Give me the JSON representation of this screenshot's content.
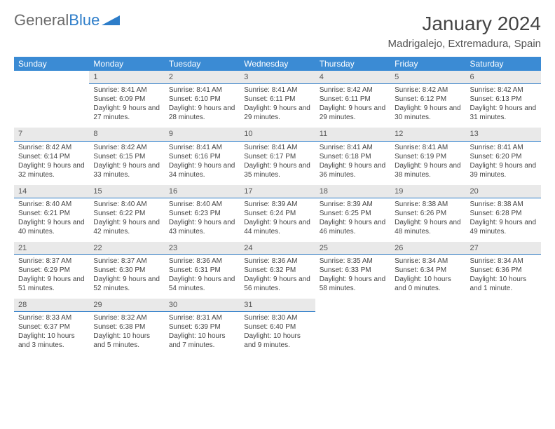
{
  "logo": {
    "text1": "General",
    "text2": "Blue"
  },
  "title": "January 2024",
  "location": "Madrigalejo, Extremadura, Spain",
  "colors": {
    "header_bg": "#3b8bd4",
    "header_text": "#ffffff",
    "daynum_bg": "#e9e9e9",
    "daynum_border": "#2d7dc9",
    "body_text": "#444444",
    "logo_gray": "#6b6b6b",
    "logo_blue": "#2d7dc9"
  },
  "weekdays": [
    "Sunday",
    "Monday",
    "Tuesday",
    "Wednesday",
    "Thursday",
    "Friday",
    "Saturday"
  ],
  "weeks": [
    [
      {
        "n": "",
        "sr": "",
        "ss": "",
        "dl": ""
      },
      {
        "n": "1",
        "sr": "Sunrise: 8:41 AM",
        "ss": "Sunset: 6:09 PM",
        "dl": "Daylight: 9 hours and 27 minutes."
      },
      {
        "n": "2",
        "sr": "Sunrise: 8:41 AM",
        "ss": "Sunset: 6:10 PM",
        "dl": "Daylight: 9 hours and 28 minutes."
      },
      {
        "n": "3",
        "sr": "Sunrise: 8:41 AM",
        "ss": "Sunset: 6:11 PM",
        "dl": "Daylight: 9 hours and 29 minutes."
      },
      {
        "n": "4",
        "sr": "Sunrise: 8:42 AM",
        "ss": "Sunset: 6:11 PM",
        "dl": "Daylight: 9 hours and 29 minutes."
      },
      {
        "n": "5",
        "sr": "Sunrise: 8:42 AM",
        "ss": "Sunset: 6:12 PM",
        "dl": "Daylight: 9 hours and 30 minutes."
      },
      {
        "n": "6",
        "sr": "Sunrise: 8:42 AM",
        "ss": "Sunset: 6:13 PM",
        "dl": "Daylight: 9 hours and 31 minutes."
      }
    ],
    [
      {
        "n": "7",
        "sr": "Sunrise: 8:42 AM",
        "ss": "Sunset: 6:14 PM",
        "dl": "Daylight: 9 hours and 32 minutes."
      },
      {
        "n": "8",
        "sr": "Sunrise: 8:42 AM",
        "ss": "Sunset: 6:15 PM",
        "dl": "Daylight: 9 hours and 33 minutes."
      },
      {
        "n": "9",
        "sr": "Sunrise: 8:41 AM",
        "ss": "Sunset: 6:16 PM",
        "dl": "Daylight: 9 hours and 34 minutes."
      },
      {
        "n": "10",
        "sr": "Sunrise: 8:41 AM",
        "ss": "Sunset: 6:17 PM",
        "dl": "Daylight: 9 hours and 35 minutes."
      },
      {
        "n": "11",
        "sr": "Sunrise: 8:41 AM",
        "ss": "Sunset: 6:18 PM",
        "dl": "Daylight: 9 hours and 36 minutes."
      },
      {
        "n": "12",
        "sr": "Sunrise: 8:41 AM",
        "ss": "Sunset: 6:19 PM",
        "dl": "Daylight: 9 hours and 38 minutes."
      },
      {
        "n": "13",
        "sr": "Sunrise: 8:41 AM",
        "ss": "Sunset: 6:20 PM",
        "dl": "Daylight: 9 hours and 39 minutes."
      }
    ],
    [
      {
        "n": "14",
        "sr": "Sunrise: 8:40 AM",
        "ss": "Sunset: 6:21 PM",
        "dl": "Daylight: 9 hours and 40 minutes."
      },
      {
        "n": "15",
        "sr": "Sunrise: 8:40 AM",
        "ss": "Sunset: 6:22 PM",
        "dl": "Daylight: 9 hours and 42 minutes."
      },
      {
        "n": "16",
        "sr": "Sunrise: 8:40 AM",
        "ss": "Sunset: 6:23 PM",
        "dl": "Daylight: 9 hours and 43 minutes."
      },
      {
        "n": "17",
        "sr": "Sunrise: 8:39 AM",
        "ss": "Sunset: 6:24 PM",
        "dl": "Daylight: 9 hours and 44 minutes."
      },
      {
        "n": "18",
        "sr": "Sunrise: 8:39 AM",
        "ss": "Sunset: 6:25 PM",
        "dl": "Daylight: 9 hours and 46 minutes."
      },
      {
        "n": "19",
        "sr": "Sunrise: 8:38 AM",
        "ss": "Sunset: 6:26 PM",
        "dl": "Daylight: 9 hours and 48 minutes."
      },
      {
        "n": "20",
        "sr": "Sunrise: 8:38 AM",
        "ss": "Sunset: 6:28 PM",
        "dl": "Daylight: 9 hours and 49 minutes."
      }
    ],
    [
      {
        "n": "21",
        "sr": "Sunrise: 8:37 AM",
        "ss": "Sunset: 6:29 PM",
        "dl": "Daylight: 9 hours and 51 minutes."
      },
      {
        "n": "22",
        "sr": "Sunrise: 8:37 AM",
        "ss": "Sunset: 6:30 PM",
        "dl": "Daylight: 9 hours and 52 minutes."
      },
      {
        "n": "23",
        "sr": "Sunrise: 8:36 AM",
        "ss": "Sunset: 6:31 PM",
        "dl": "Daylight: 9 hours and 54 minutes."
      },
      {
        "n": "24",
        "sr": "Sunrise: 8:36 AM",
        "ss": "Sunset: 6:32 PM",
        "dl": "Daylight: 9 hours and 56 minutes."
      },
      {
        "n": "25",
        "sr": "Sunrise: 8:35 AM",
        "ss": "Sunset: 6:33 PM",
        "dl": "Daylight: 9 hours and 58 minutes."
      },
      {
        "n": "26",
        "sr": "Sunrise: 8:34 AM",
        "ss": "Sunset: 6:34 PM",
        "dl": "Daylight: 10 hours and 0 minutes."
      },
      {
        "n": "27",
        "sr": "Sunrise: 8:34 AM",
        "ss": "Sunset: 6:36 PM",
        "dl": "Daylight: 10 hours and 1 minute."
      }
    ],
    [
      {
        "n": "28",
        "sr": "Sunrise: 8:33 AM",
        "ss": "Sunset: 6:37 PM",
        "dl": "Daylight: 10 hours and 3 minutes."
      },
      {
        "n": "29",
        "sr": "Sunrise: 8:32 AM",
        "ss": "Sunset: 6:38 PM",
        "dl": "Daylight: 10 hours and 5 minutes."
      },
      {
        "n": "30",
        "sr": "Sunrise: 8:31 AM",
        "ss": "Sunset: 6:39 PM",
        "dl": "Daylight: 10 hours and 7 minutes."
      },
      {
        "n": "31",
        "sr": "Sunrise: 8:30 AM",
        "ss": "Sunset: 6:40 PM",
        "dl": "Daylight: 10 hours and 9 minutes."
      },
      {
        "n": "",
        "sr": "",
        "ss": "",
        "dl": ""
      },
      {
        "n": "",
        "sr": "",
        "ss": "",
        "dl": ""
      },
      {
        "n": "",
        "sr": "",
        "ss": "",
        "dl": ""
      }
    ]
  ]
}
